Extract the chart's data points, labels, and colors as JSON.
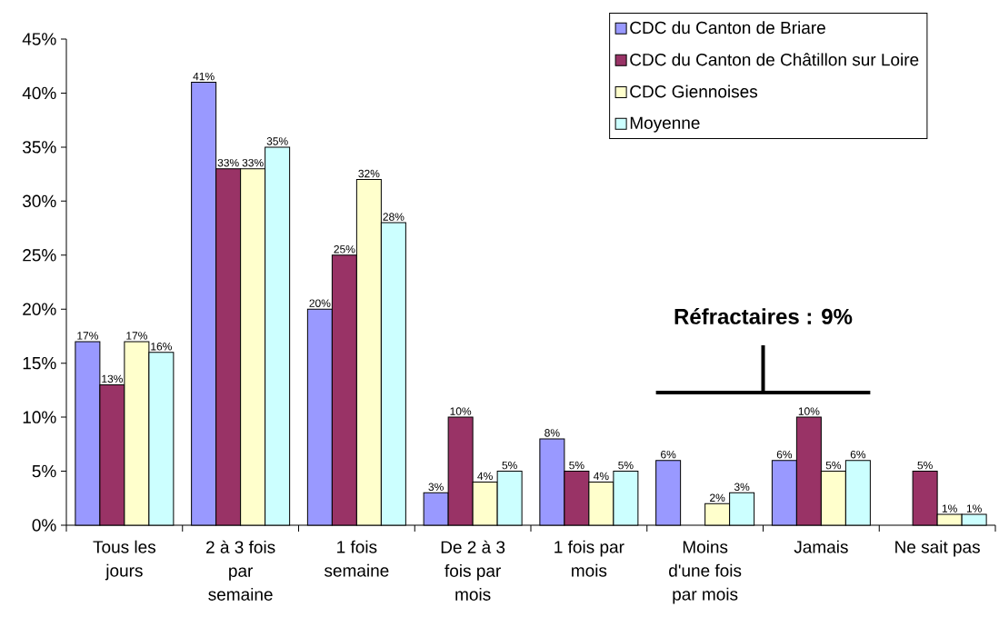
{
  "chart_data": {
    "type": "bar",
    "categories": [
      "Tous les jours",
      "2 à 3 fois par semaine",
      "1 fois semaine",
      "De 2 à 3 fois par mois",
      "1 fois par mois",
      "Moins d'une fois par mois",
      "Jamais",
      "Ne sait pas"
    ],
    "series": [
      {
        "name": "CDC du Canton de Briare",
        "color": "#9999ff",
        "values": [
          17,
          41,
          20,
          3,
          8,
          6,
          6,
          null
        ],
        "value_labels": [
          "17%",
          "41%",
          "20%",
          "3%",
          "8%",
          "6%",
          "6%",
          null
        ]
      },
      {
        "name": "CDC du Canton de Châtillon sur Loire",
        "color": "#993366",
        "values": [
          13,
          33,
          25,
          10,
          5,
          null,
          10,
          5
        ],
        "value_labels": [
          "13%",
          "33%",
          "25%",
          "10%",
          "5%",
          null,
          "10%",
          "5%"
        ]
      },
      {
        "name": "CDC Giennoises",
        "color": "#ffffcc",
        "values": [
          17,
          33,
          32,
          4,
          4,
          2,
          5,
          1
        ],
        "value_labels": [
          "17%",
          "33%",
          "32%",
          "4%",
          "4%",
          "2%",
          "5%",
          "1%"
        ]
      },
      {
        "name": "Moyenne",
        "color": "#ccffff",
        "values": [
          16,
          35,
          28,
          5,
          5,
          3,
          6,
          1
        ],
        "value_labels": [
          "16%",
          "35%",
          "28%",
          "5%",
          "5%",
          "3%",
          "6%",
          "1%"
        ]
      }
    ],
    "ylim": [
      0,
      45
    ],
    "yticks": [
      {
        "value": 0,
        "label": "0%"
      },
      {
        "value": 5,
        "label": "5%"
      },
      {
        "value": 10,
        "label": "10%"
      },
      {
        "value": 15,
        "label": "15%"
      },
      {
        "value": 20,
        "label": "20%"
      },
      {
        "value": 25,
        "label": "25%"
      },
      {
        "value": 30,
        "label": "30%"
      },
      {
        "value": 35,
        "label": "35%"
      },
      {
        "value": 40,
        "label": "40%"
      },
      {
        "value": 45,
        "label": "45%"
      }
    ],
    "legend": "top right",
    "annotations": [
      "Réfractaires : 9%"
    ]
  }
}
